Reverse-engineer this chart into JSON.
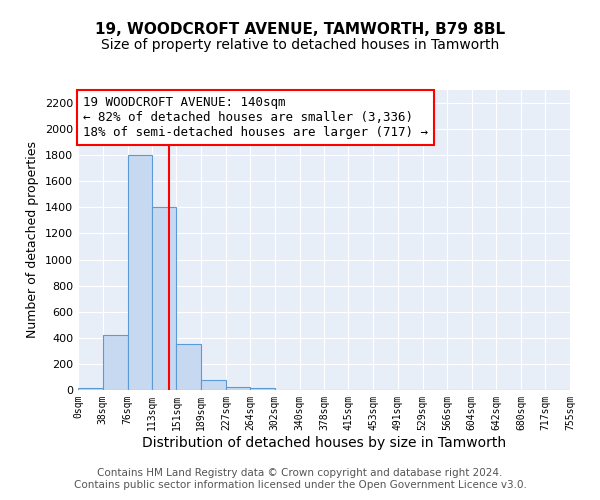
{
  "title1": "19, WOODCROFT AVENUE, TAMWORTH, B79 8BL",
  "title2": "Size of property relative to detached houses in Tamworth",
  "xlabel": "Distribution of detached houses by size in Tamworth",
  "ylabel": "Number of detached properties",
  "bin_edges": [
    0,
    38,
    76,
    113,
    151,
    189,
    227,
    264,
    302,
    340,
    378,
    415,
    453,
    491,
    529,
    566,
    604,
    642,
    680,
    717,
    755
  ],
  "bar_heights": [
    15,
    420,
    1800,
    1400,
    350,
    75,
    25,
    15,
    0,
    0,
    0,
    0,
    0,
    0,
    0,
    0,
    0,
    0,
    0,
    0
  ],
  "bar_color": "#c6d9f0",
  "bar_edge_color": "#5b9bd5",
  "red_line_x": 140,
  "ylim": [
    0,
    2300
  ],
  "yticks": [
    0,
    200,
    400,
    600,
    800,
    1000,
    1200,
    1400,
    1600,
    1800,
    2000,
    2200
  ],
  "xtick_labels": [
    "0sqm",
    "38sqm",
    "76sqm",
    "113sqm",
    "151sqm",
    "189sqm",
    "227sqm",
    "264sqm",
    "302sqm",
    "340sqm",
    "378sqm",
    "415sqm",
    "453sqm",
    "491sqm",
    "529sqm",
    "566sqm",
    "604sqm",
    "642sqm",
    "680sqm",
    "717sqm",
    "755sqm"
  ],
  "annotation_text": "19 WOODCROFT AVENUE: 140sqm\n← 82% of detached houses are smaller (3,336)\n18% of semi-detached houses are larger (717) →",
  "footer_text": "Contains HM Land Registry data © Crown copyright and database right 2024.\nContains public sector information licensed under the Open Government Licence v3.0.",
  "background_color": "#ffffff",
  "plot_bg_color": "#e8eef8",
  "grid_color": "#ffffff",
  "title1_fontsize": 11,
  "title2_fontsize": 10,
  "xlabel_fontsize": 10,
  "ylabel_fontsize": 9,
  "annotation_fontsize": 9,
  "footer_fontsize": 7.5
}
